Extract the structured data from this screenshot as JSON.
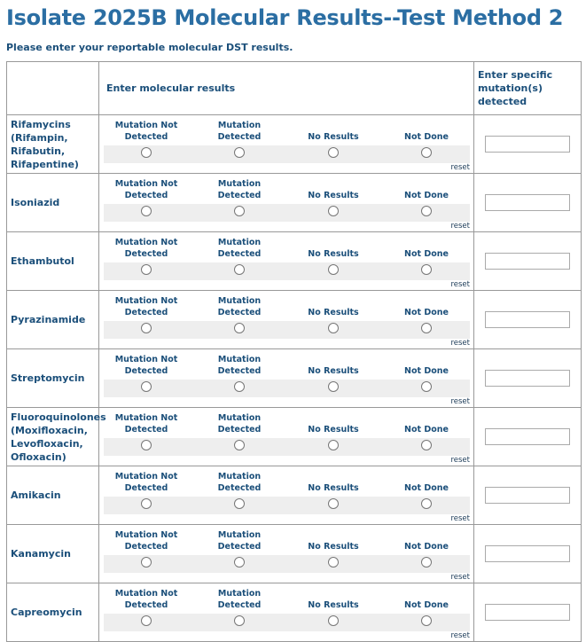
{
  "header": {
    "title": "Isolate 2025B Molecular Results--Test Method 2",
    "instructions": "Please enter your reportable molecular DST results."
  },
  "table": {
    "columns": [
      "Enter molecular results",
      "Enter specific mutation(s) detected"
    ],
    "options": [
      "Mutation Not Detected",
      "Mutation Detected",
      "No Results",
      "Not Done"
    ],
    "reset_label": "reset",
    "rows": [
      "Rifamycins (Rifampin, Rifabutin, Rifapentine)",
      "Isoniazid",
      "Ethambutol",
      "Pyrazinamide",
      "Streptomycin",
      "Fluoroquinolones (Moxifloxacin, Levofloxacin, Ofloxacin)",
      "Amikacin",
      "Kanamycin",
      "Capreomycin"
    ]
  }
}
